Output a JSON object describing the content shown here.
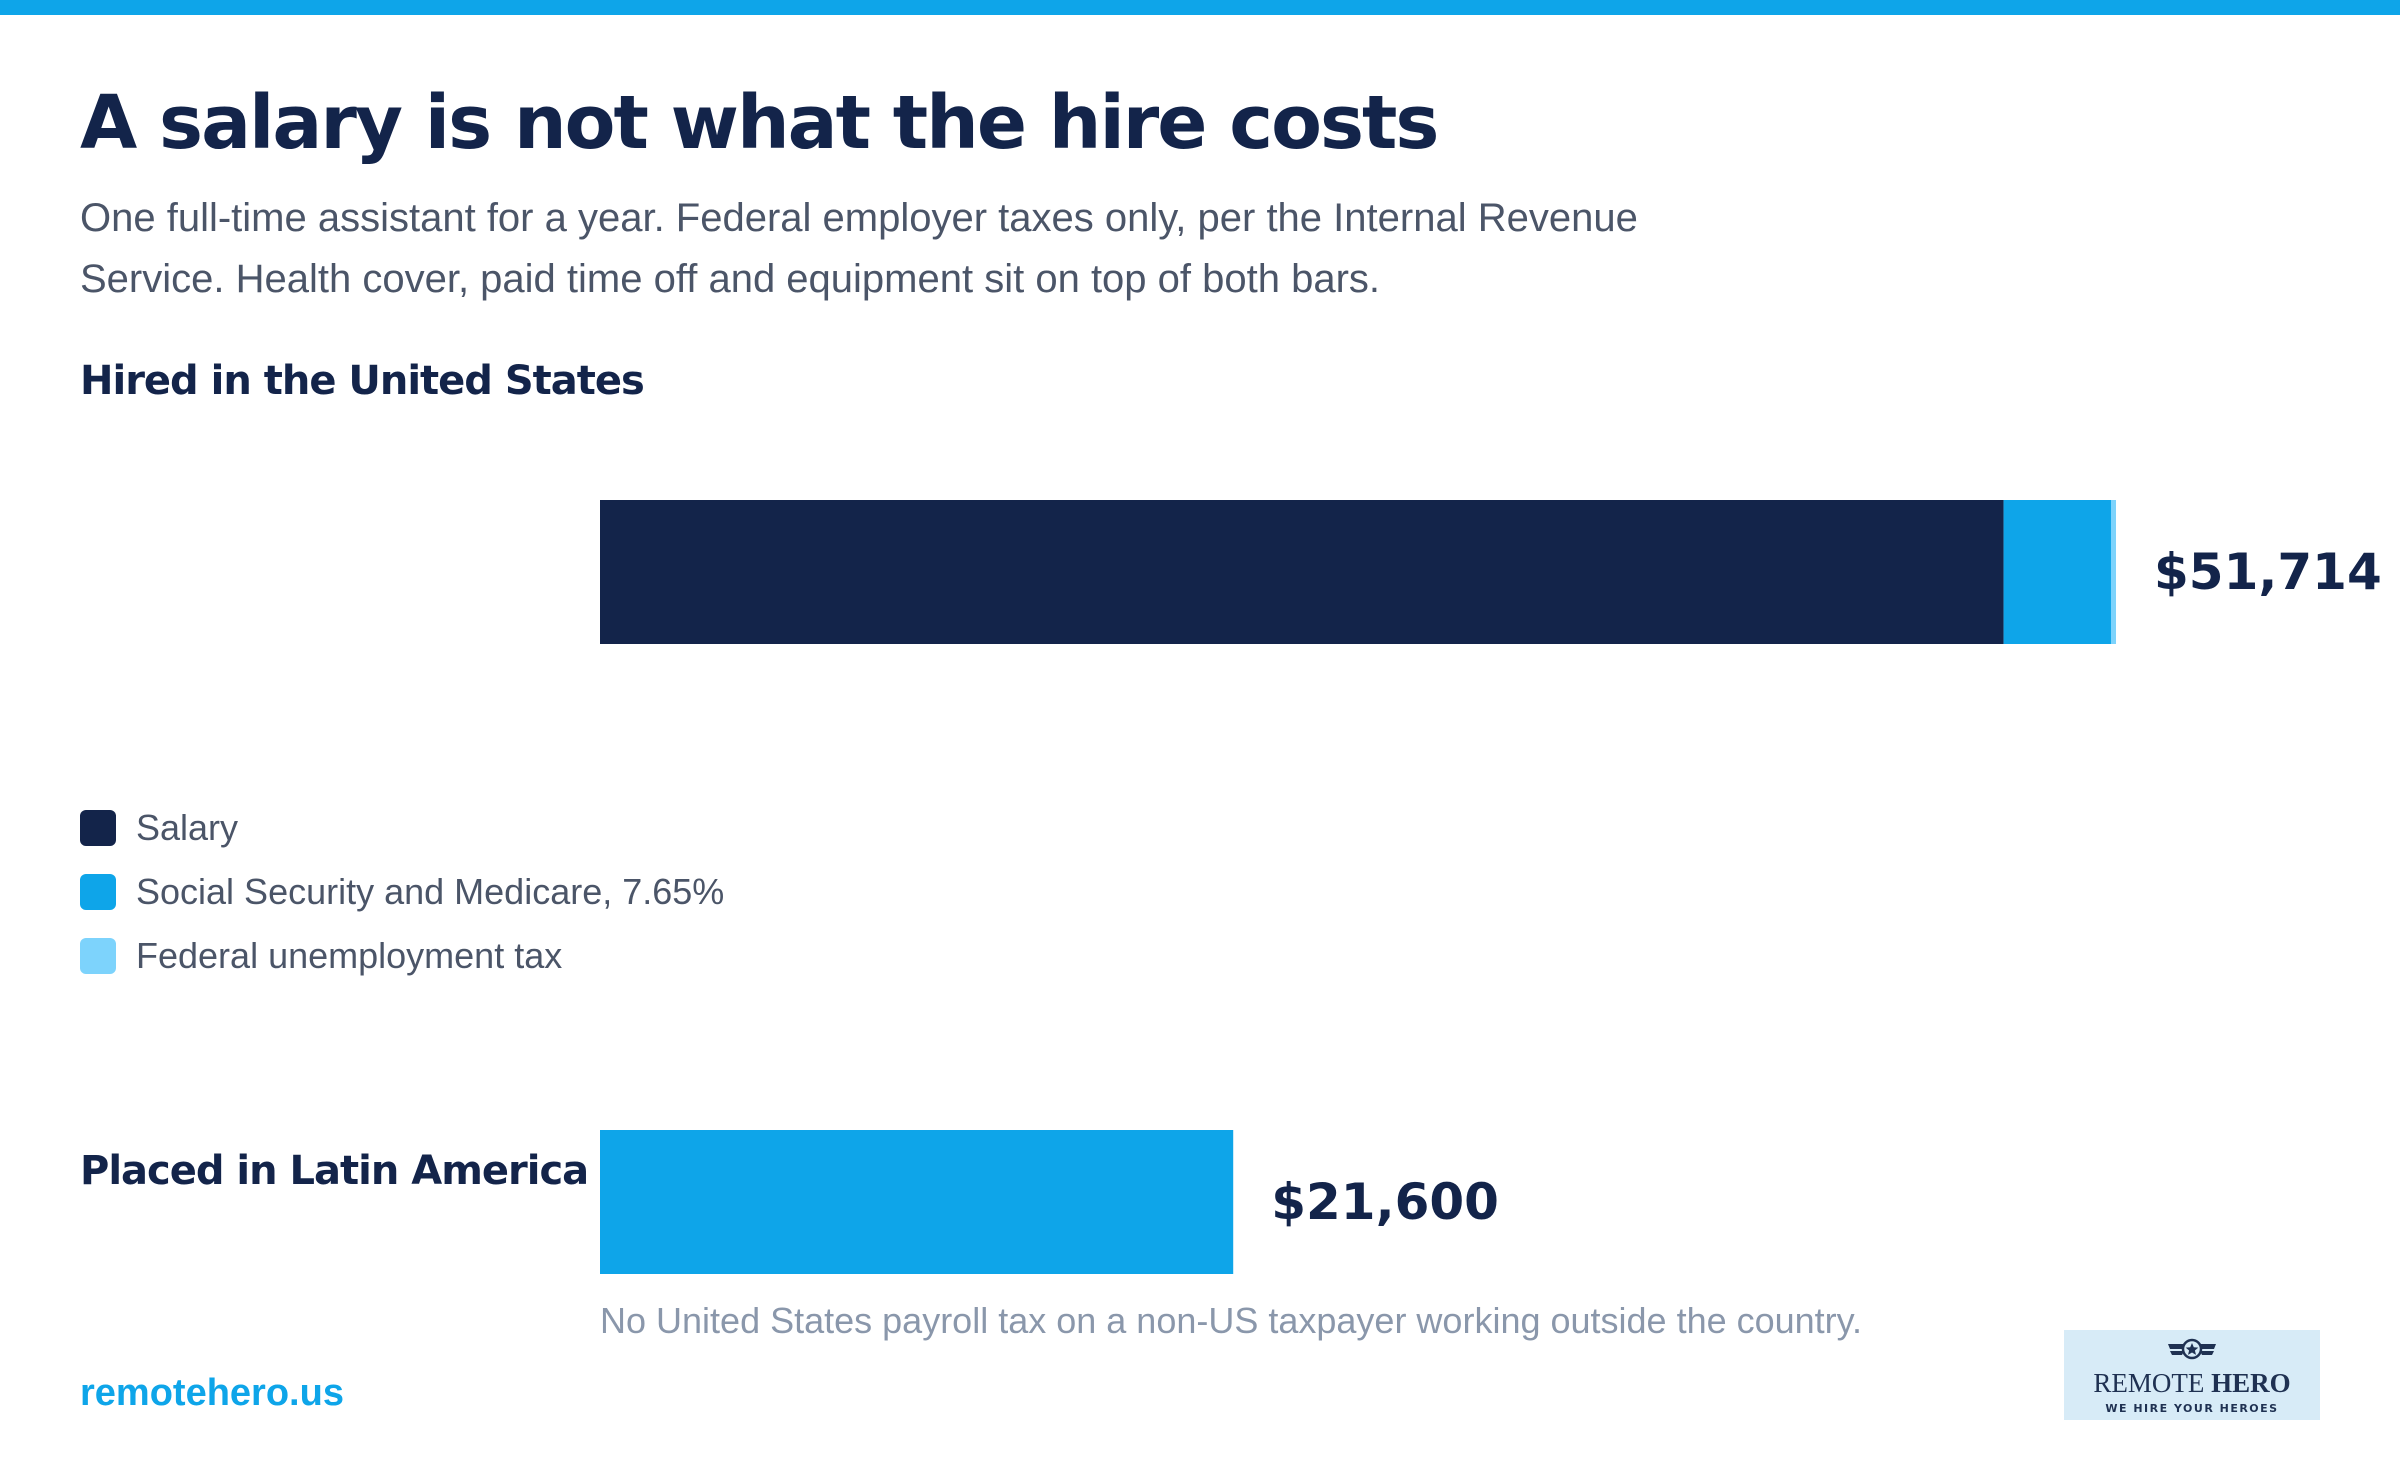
{
  "title": "A salary is not what the hire costs",
  "subtitle": "One full-time assistant for a year. Federal employer taxes only, per the Internal Revenue Service. Health cover, paid time off and equipment sit on top of both bars.",
  "colors": {
    "top_bar": "#0ea5e9",
    "salary": "#13244a",
    "social_security_medicare": "#0ea5e9",
    "federal_unemployment": "#7dd3fc",
    "latam": "#0ea5e9",
    "text_dark": "#13244a",
    "text_muted": "#8a97ab",
    "logo_bg": "#d7ebf7"
  },
  "chart_data": {
    "type": "bar",
    "orientation": "horizontal",
    "stacked": true,
    "xlim": [
      0,
      51714
    ],
    "grid": false,
    "legend_position": "below-first-bar",
    "bars": [
      {
        "label": "Hired in the United States",
        "total": 51714,
        "total_label": "$51,714",
        "segments": [
          {
            "name": "Salary",
            "value": 47880,
            "color": "#13244a"
          },
          {
            "name": "Social Security and Medicare, 7.65%",
            "value": 3663,
            "color": "#0ea5e9"
          },
          {
            "name": "Federal unemployment tax",
            "value": 171,
            "color": "#7dd3fc"
          }
        ]
      },
      {
        "label": "Placed in Latin America",
        "total": 21600,
        "total_label": "$21,600",
        "segments": [
          {
            "name": "",
            "value": 21600,
            "color": "#0ea5e9"
          }
        ]
      }
    ],
    "legend": [
      {
        "label": "Salary",
        "color": "#13244a"
      },
      {
        "label": "Social Security and Medicare, 7.65%",
        "color": "#0ea5e9"
      },
      {
        "label": "Federal unemployment tax",
        "color": "#7dd3fc"
      }
    ]
  },
  "note": "No United States payroll tax on a non-US taxpayer working outside the country.",
  "footer": {
    "website": "remotehero.us"
  },
  "logo": {
    "name_part1": "REMOTE",
    "name_part2": "HERO",
    "tagline": "WE HIRE YOUR HEROES"
  }
}
